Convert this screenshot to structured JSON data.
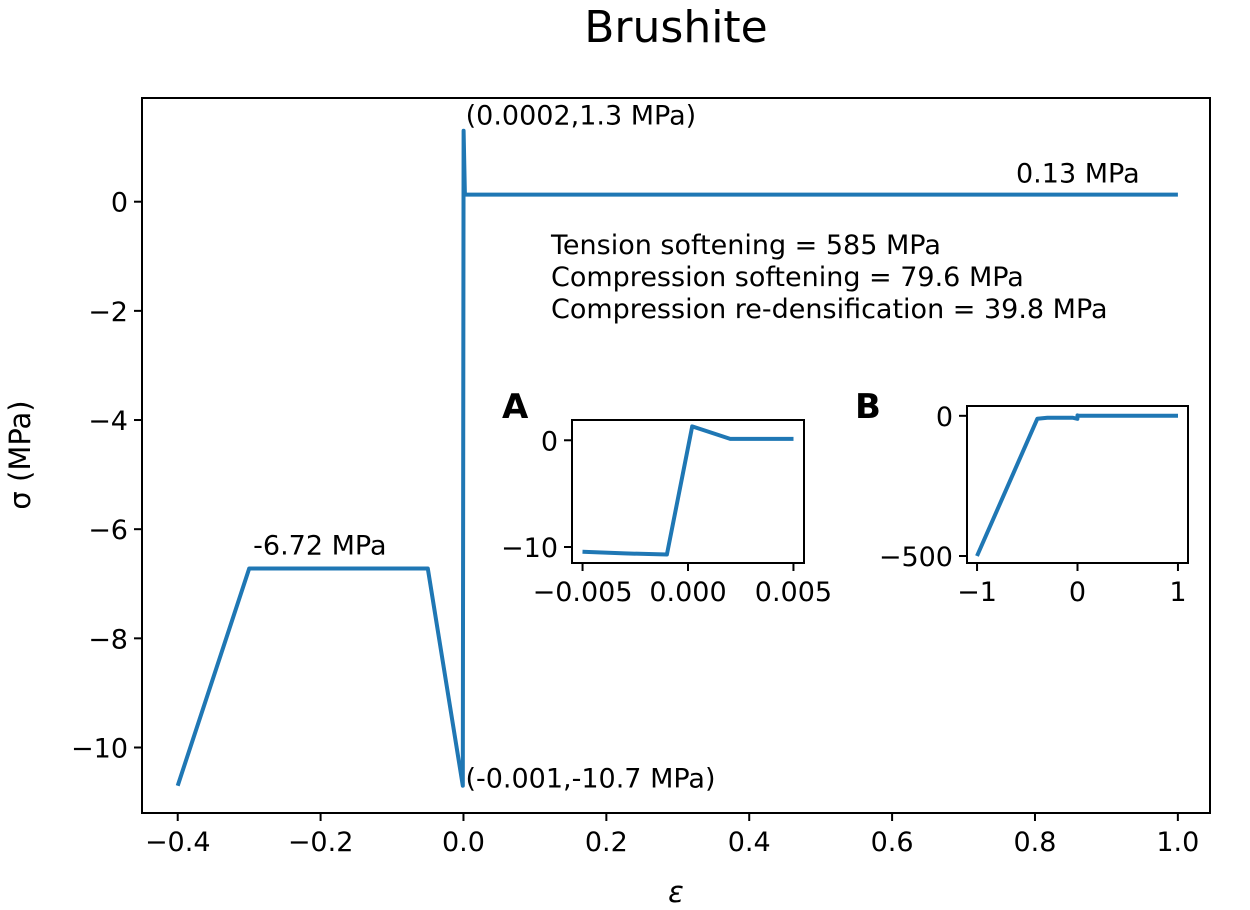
{
  "chart_data": {
    "type": "line",
    "title": "Brushite",
    "xlabel": "ε",
    "ylabel": "σ (MPa)",
    "xlim": [
      -0.45,
      1.045
    ],
    "ylim": [
      -11.2,
      1.9
    ],
    "grid": false,
    "color": "#1f77b4",
    "x_ticks": [
      -0.4,
      -0.2,
      0.0,
      0.2,
      0.4,
      0.6,
      0.8,
      1.0
    ],
    "x_tick_labels": [
      "−0.4",
      "−0.2",
      "0.0",
      "0.2",
      "0.4",
      "0.6",
      "0.8",
      "1.0"
    ],
    "y_ticks": [
      0,
      -2,
      -4,
      -6,
      -8,
      -10
    ],
    "y_tick_labels": [
      "0",
      "−2",
      "−4",
      "−6",
      "−8",
      "−10"
    ],
    "series": [
      {
        "x": [
          -0.4,
          -0.3,
          -0.05,
          -0.001,
          0.0002,
          0.002,
          1.0
        ],
        "y": [
          -10.7,
          -6.72,
          -6.72,
          -10.7,
          1.3,
          0.13,
          0.13
        ]
      }
    ],
    "annotations": [
      {
        "text": "(0.0002,1.3 MPa)",
        "x": 0.0002,
        "y": 1.3
      },
      {
        "text": "0.13 MPa",
        "x": 0.75,
        "y": 0.13
      },
      {
        "text": "-6.72 MPa",
        "x": -0.3,
        "y": -6.72
      },
      {
        "text": "(-0.001,-10.7 MPa)",
        "x": 0.0,
        "y": -10.7
      }
    ],
    "text_block": [
      "Tension softening = 585 MPa",
      "Compression softening = 79.6 MPa",
      "Compression re-densification = 39.8 MPa"
    ],
    "insets": [
      {
        "panel_label": "A",
        "xlim": [
          -0.0055,
          0.0055
        ],
        "ylim": [
          -11.5,
          1.9
        ],
        "x_ticks": [
          -0.005,
          0.0,
          0.005
        ],
        "x_tick_labels": [
          "−0.005",
          "0.000",
          "0.005"
        ],
        "y_ticks": [
          0,
          -10
        ],
        "y_tick_labels": [
          "0",
          "−10"
        ],
        "series": [
          {
            "x": [
              -0.005,
              -0.003,
              -0.001,
              0.0002,
              0.002,
              0.005
            ],
            "y": [
              -10.45,
              -10.6,
              -10.7,
              1.3,
              0.13,
              0.13
            ]
          }
        ]
      },
      {
        "panel_label": "B",
        "xlim": [
          -1.1,
          1.1
        ],
        "ylim": [
          -525,
          35
        ],
        "x_ticks": [
          -1,
          0,
          1
        ],
        "x_tick_labels": [
          "−1",
          "0",
          "1"
        ],
        "y_ticks": [
          0,
          -500
        ],
        "y_tick_labels": [
          "0",
          "−500"
        ],
        "series": [
          {
            "x": [
              -1.0,
              -0.4,
              -0.3,
              -0.05,
              -0.001,
              0.0002,
              0.002,
              1.0
            ],
            "y": [
              -500,
              -10.7,
              -6.72,
              -6.72,
              -10.7,
              1.3,
              0.13,
              0.13
            ]
          }
        ]
      }
    ]
  }
}
